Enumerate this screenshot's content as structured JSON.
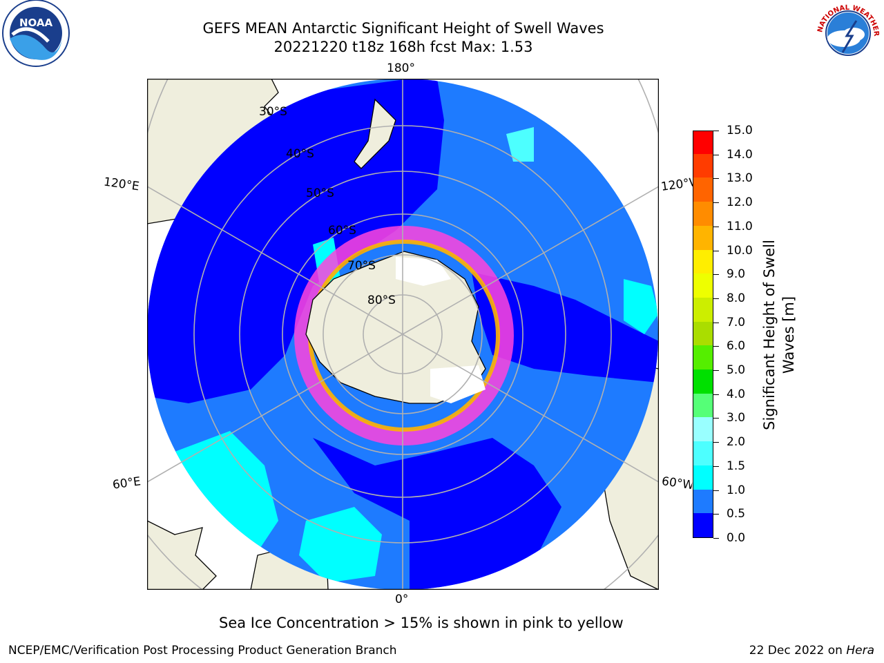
{
  "title": {
    "line1": "GEFS MEAN Antarctic Significant Height of Swell Waves",
    "line2": "20221220 t18z 168h fcst   Max: 1.53"
  },
  "map": {
    "projection": "south-polar-stereographic",
    "longitude_labels": {
      "top": "180°",
      "bottom": "0°",
      "upper_left": "120°E",
      "upper_right": "120°W",
      "lower_left": "60°E",
      "lower_right": "60°W"
    },
    "latitude_labels": [
      "30°S",
      "40°S",
      "50°S",
      "60°S",
      "70°S",
      "80°S"
    ],
    "colors": {
      "land": "#efeedd",
      "ocean_low": "#0000ff",
      "ocean_mid": "#1e7bff",
      "ocean_high": "#00ffff",
      "grid": "#b0b0b0",
      "coast": "#000000"
    }
  },
  "colorbar": {
    "title_line1": "Significant Height of Swell",
    "title_line2": "Waves [m]",
    "tick_labels": [
      "0.0",
      "0.5",
      "1.0",
      "1.5",
      "2.0",
      "3.0",
      "4.0",
      "5.0",
      "6.0",
      "7.0",
      "8.0",
      "9.0",
      "10.0",
      "11.0",
      "12.0",
      "13.0",
      "14.0",
      "15.0"
    ],
    "colors": [
      "#0000ff",
      "#1e7bff",
      "#00ffff",
      "#4dffff",
      "#99ffff",
      "#55ff77",
      "#00e000",
      "#55ee00",
      "#aadd00",
      "#ccee00",
      "#eeff00",
      "#ffee00",
      "#ffb400",
      "#ff8c00",
      "#ff6400",
      "#ff3c00",
      "#ff0000"
    ]
  },
  "note": "Sea Ice Concentration > 15% is shown in pink to yellow",
  "footer": {
    "left": "NCEP/EMC/Verification Post Processing Product Generation Branch",
    "date": "22 Dec 2022 on ",
    "machine": "Hera"
  },
  "logos": {
    "left_text": "NOAA",
    "right_text": "NATIONAL WEATHER SERVICE"
  }
}
